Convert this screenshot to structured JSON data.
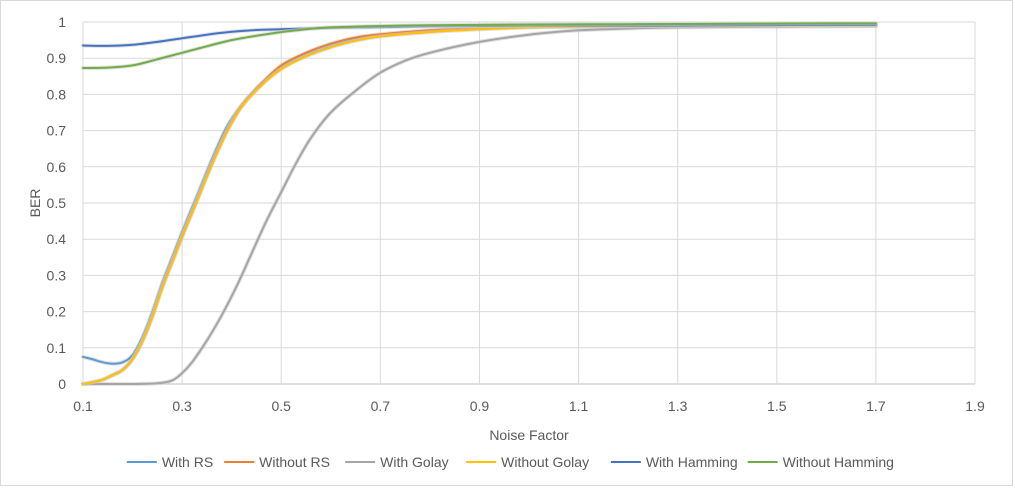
{
  "chart_data": {
    "type": "line",
    "title": "",
    "xlabel": "Noise  Factor",
    "ylabel": "BER",
    "xlim": [
      0.1,
      1.9
    ],
    "ylim": [
      0,
      1
    ],
    "x_ticks": [
      "0.1",
      "0.3",
      "0.5",
      "0.7",
      "0.9",
      "1.1",
      "1.3",
      "1.5",
      "1.7",
      "1.9"
    ],
    "y_ticks": [
      "0",
      "0.1",
      "0.2",
      "0.3",
      "0.4",
      "0.5",
      "0.6",
      "0.7",
      "0.8",
      "0.9",
      "1"
    ],
    "grid": "horizontal and vertical",
    "legend_position": "bottom",
    "series": [
      {
        "name": "With RS",
        "color": "#5b9bd5",
        "x": [
          0.1,
          0.12,
          0.14,
          0.16,
          0.18,
          0.2,
          0.22,
          0.24,
          0.26,
          0.28,
          0.3,
          0.33,
          0.36,
          0.39,
          0.42,
          0.46,
          0.5,
          0.55,
          0.6,
          0.65,
          0.7,
          0.8,
          0.9,
          1.0,
          1.1,
          1.3,
          1.5,
          1.7
        ],
        "y": [
          0.075,
          0.068,
          0.06,
          0.056,
          0.06,
          0.08,
          0.13,
          0.2,
          0.28,
          0.35,
          0.42,
          0.52,
          0.62,
          0.71,
          0.77,
          0.83,
          0.875,
          0.91,
          0.935,
          0.952,
          0.963,
          0.975,
          0.982,
          0.986,
          0.988,
          0.99,
          0.991,
          0.992
        ]
      },
      {
        "name": "Without RS",
        "color": "#ed7d31",
        "x": [
          0.1,
          0.12,
          0.14,
          0.16,
          0.18,
          0.2,
          0.22,
          0.24,
          0.26,
          0.28,
          0.3,
          0.33,
          0.36,
          0.39,
          0.42,
          0.46,
          0.5,
          0.55,
          0.6,
          0.65,
          0.7,
          0.8,
          0.9,
          1.0,
          1.1,
          1.3,
          1.5,
          1.7
        ],
        "y": [
          0.0,
          0.005,
          0.012,
          0.025,
          0.04,
          0.07,
          0.12,
          0.19,
          0.27,
          0.34,
          0.41,
          0.51,
          0.61,
          0.7,
          0.77,
          0.83,
          0.88,
          0.915,
          0.94,
          0.957,
          0.966,
          0.977,
          0.983,
          0.987,
          0.989,
          0.99,
          0.991,
          0.992
        ]
      },
      {
        "name": "With Golay",
        "color": "#a5a5a5",
        "x": [
          0.1,
          0.15,
          0.2,
          0.25,
          0.28,
          0.3,
          0.32,
          0.35,
          0.38,
          0.41,
          0.44,
          0.47,
          0.5,
          0.53,
          0.56,
          0.6,
          0.65,
          0.7,
          0.75,
          0.8,
          0.9,
          1.0,
          1.1,
          1.2,
          1.3,
          1.5,
          1.7
        ],
        "y": [
          0.0,
          0.0,
          0.0,
          0.002,
          0.01,
          0.03,
          0.06,
          0.12,
          0.19,
          0.27,
          0.36,
          0.45,
          0.53,
          0.61,
          0.68,
          0.75,
          0.81,
          0.86,
          0.893,
          0.915,
          0.945,
          0.965,
          0.977,
          0.982,
          0.985,
          0.987,
          0.988
        ]
      },
      {
        "name": "Without Golay",
        "color": "#ffc000",
        "x": [
          0.1,
          0.12,
          0.14,
          0.16,
          0.18,
          0.2,
          0.22,
          0.24,
          0.26,
          0.28,
          0.3,
          0.33,
          0.36,
          0.39,
          0.42,
          0.46,
          0.5,
          0.55,
          0.6,
          0.65,
          0.7,
          0.8,
          0.9,
          1.0,
          1.1,
          1.3,
          1.5,
          1.7
        ],
        "y": [
          0.0,
          0.005,
          0.012,
          0.024,
          0.038,
          0.068,
          0.118,
          0.185,
          0.265,
          0.335,
          0.405,
          0.505,
          0.605,
          0.695,
          0.765,
          0.825,
          0.87,
          0.905,
          0.93,
          0.948,
          0.96,
          0.972,
          0.98,
          0.985,
          0.987,
          0.989,
          0.99,
          0.991
        ]
      },
      {
        "name": "With Hamming",
        "color": "#4472c4",
        "x": [
          0.1,
          0.15,
          0.2,
          0.25,
          0.3,
          0.35,
          0.4,
          0.45,
          0.5,
          0.55,
          0.6,
          0.7,
          0.8,
          0.9,
          1.0,
          1.2,
          1.4,
          1.6,
          1.7
        ],
        "y": [
          0.935,
          0.934,
          0.937,
          0.945,
          0.955,
          0.965,
          0.973,
          0.978,
          0.98,
          0.982,
          0.984,
          0.986,
          0.988,
          0.989,
          0.99,
          0.99,
          0.991,
          0.992,
          0.992
        ]
      },
      {
        "name": "Without Hamming",
        "color": "#70ad47",
        "x": [
          0.1,
          0.15,
          0.2,
          0.25,
          0.3,
          0.35,
          0.4,
          0.45,
          0.5,
          0.55,
          0.6,
          0.7,
          0.8,
          0.9,
          1.0,
          1.2,
          1.4,
          1.6,
          1.7
        ],
        "y": [
          0.873,
          0.874,
          0.88,
          0.897,
          0.915,
          0.933,
          0.95,
          0.962,
          0.972,
          0.98,
          0.985,
          0.989,
          0.991,
          0.992,
          0.993,
          0.994,
          0.995,
          0.996,
          0.996
        ]
      }
    ]
  }
}
